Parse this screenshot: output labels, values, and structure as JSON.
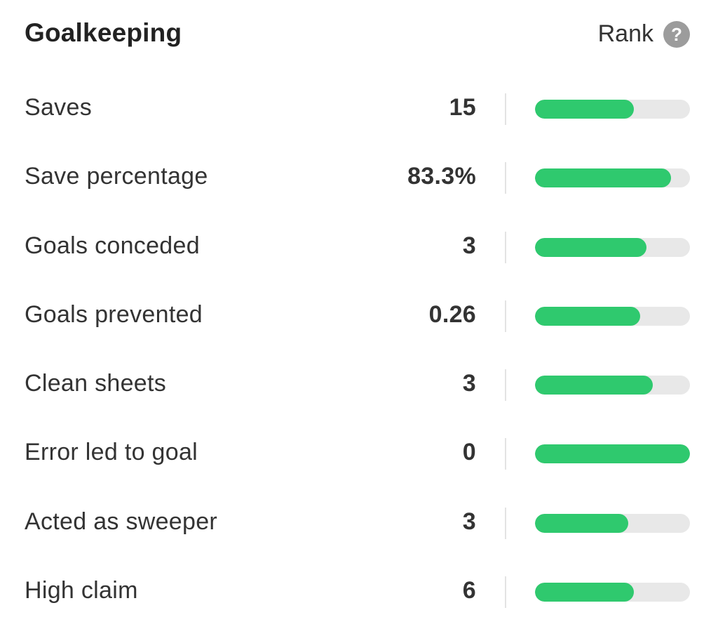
{
  "section": {
    "title": "Goalkeeping",
    "rank_label": "Rank",
    "help_icon": "question-circle-icon"
  },
  "colors": {
    "bar_fill": "#2fc96e",
    "bar_track": "#e8e8e8"
  },
  "stats": [
    {
      "label": "Saves",
      "value": "15",
      "rank_fraction": 0.64
    },
    {
      "label": "Save percentage",
      "value": "83.3%",
      "rank_fraction": 0.88
    },
    {
      "label": "Goals conceded",
      "value": "3",
      "rank_fraction": 0.72
    },
    {
      "label": "Goals prevented",
      "value": "0.26",
      "rank_fraction": 0.68
    },
    {
      "label": "Clean sheets",
      "value": "3",
      "rank_fraction": 0.76
    },
    {
      "label": "Error led to goal",
      "value": "0",
      "rank_fraction": 1.0
    },
    {
      "label": "Acted as sweeper",
      "value": "3",
      "rank_fraction": 0.6
    },
    {
      "label": "High claim",
      "value": "6",
      "rank_fraction": 0.64
    }
  ]
}
